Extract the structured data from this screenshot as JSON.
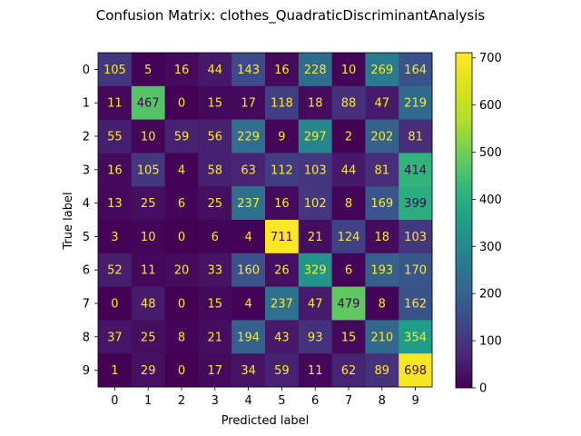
{
  "chart_data": {
    "type": "heatmap",
    "title": "Confusion Matrix: clothes_QuadraticDiscriminantAnalysis",
    "xlabel": "Predicted label",
    "ylabel": "True label",
    "x_ticks": [
      "0",
      "1",
      "2",
      "3",
      "4",
      "5",
      "6",
      "7",
      "8",
      "9"
    ],
    "y_ticks": [
      "0",
      "1",
      "2",
      "3",
      "4",
      "5",
      "6",
      "7",
      "8",
      "9"
    ],
    "matrix": [
      [
        105,
        5,
        16,
        44,
        143,
        16,
        228,
        10,
        269,
        164
      ],
      [
        11,
        467,
        0,
        15,
        17,
        118,
        18,
        88,
        47,
        219
      ],
      [
        55,
        10,
        59,
        56,
        229,
        9,
        297,
        2,
        202,
        81
      ],
      [
        16,
        105,
        4,
        58,
        63,
        112,
        103,
        44,
        81,
        414
      ],
      [
        13,
        25,
        6,
        25,
        237,
        16,
        102,
        8,
        169,
        399
      ],
      [
        3,
        10,
        0,
        6,
        4,
        711,
        21,
        124,
        18,
        103
      ],
      [
        52,
        11,
        20,
        33,
        160,
        26,
        329,
        6,
        193,
        170
      ],
      [
        0,
        48,
        0,
        15,
        4,
        237,
        47,
        479,
        8,
        162
      ],
      [
        37,
        25,
        8,
        21,
        194,
        43,
        93,
        15,
        210,
        354
      ],
      [
        1,
        29,
        0,
        17,
        34,
        59,
        11,
        62,
        89,
        698
      ]
    ],
    "value_range": [
      0,
      711
    ],
    "colormap": "viridis",
    "colorbar_ticks": [
      0,
      100,
      200,
      300,
      400,
      500,
      600,
      700
    ],
    "text_color_light": "#fde725",
    "text_color_dark": "#440154"
  }
}
